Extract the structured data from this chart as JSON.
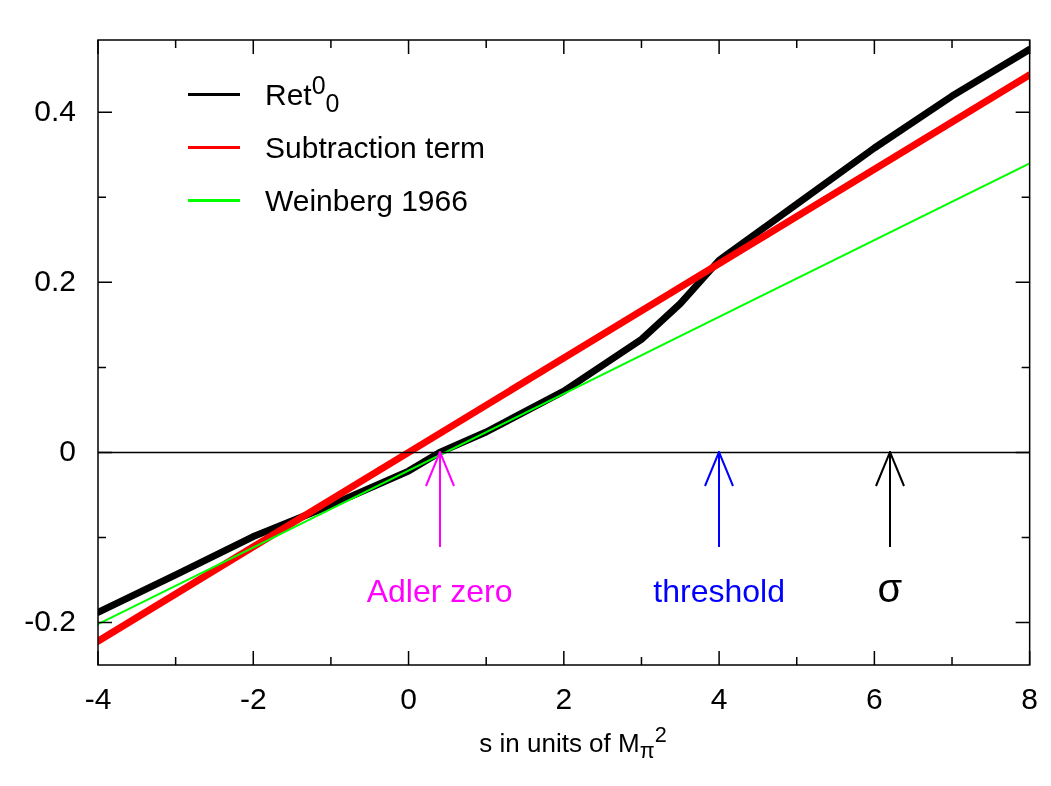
{
  "chart_data": {
    "type": "line",
    "xlabel": "s in units of M$_{π}$$^{2}$",
    "xlim": [
      -4,
      8
    ],
    "xticks": [
      -4,
      {
        "value": -3,
        "label": null
      },
      -2,
      {
        "value": -1,
        "label": null
      },
      0,
      {
        "value": 1,
        "label": null
      },
      2,
      {
        "value": 3,
        "label": null
      },
      4,
      {
        "value": 5,
        "label": null
      },
      6,
      {
        "value": 7,
        "label": null
      },
      8
    ],
    "ylim": [
      -0.25,
      0.485
    ],
    "yticks": [
      -0.2,
      {
        "value": -0.1,
        "label": null
      },
      0,
      {
        "value": 0.1,
        "label": null
      },
      0.2,
      {
        "value": 0.3,
        "label": null
      },
      0.4
    ],
    "legend": "top left",
    "marker": "none",
    "line_style": "solid",
    "series": [
      {
        "name": "Ret$^{0}$$_{0}$",
        "color": "#000000",
        "x": [
          -4,
          -3,
          -2,
          -1,
          0,
          0.4,
          1,
          2,
          3,
          3.5,
          4,
          5,
          6,
          7,
          8
        ],
        "values": [
          -0.188,
          -0.144,
          -0.099,
          -0.062,
          -0.022,
          0,
          0.024,
          0.072,
          0.133,
          0.175,
          0.226,
          0.292,
          0.358,
          0.419,
          0.474
        ]
      },
      {
        "name": "Subtraction term",
        "color": "#ff0000",
        "x": [
          -4,
          8
        ],
        "values": [
          -0.222,
          0.444
        ]
      },
      {
        "name": "Weinberg 1966",
        "color": "#00ff00",
        "x": [
          -4,
          8
        ],
        "values": [
          -0.202,
          0.34
        ]
      }
    ],
    "ref_lines": [
      {
        "axis": "y",
        "value": 0,
        "color": "#000000"
      }
    ],
    "annotations": [
      {
        "text": "Adler zero",
        "x": 0.4,
        "y": 0
      },
      {
        "text": "threshold",
        "x": 4,
        "y": 0
      },
      {
        "text": "σ",
        "x": 6.2,
        "y": 0
      }
    ]
  }
}
